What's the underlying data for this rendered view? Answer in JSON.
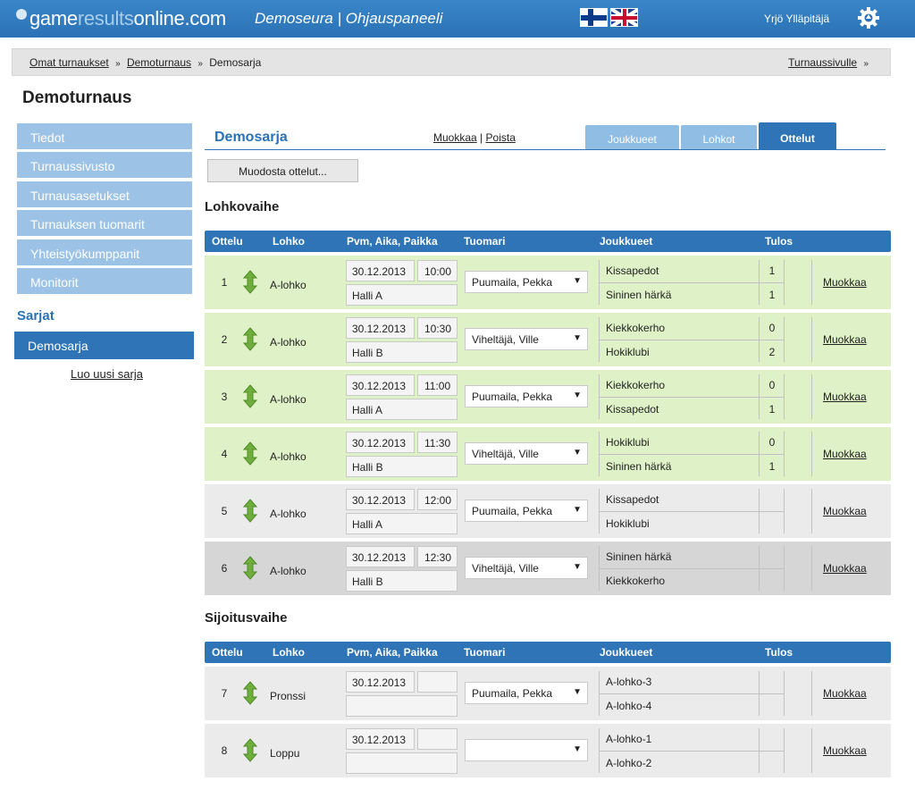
{
  "header": {
    "logo_game": "game",
    "logo_results": "results",
    "logo_online": "online.com",
    "app_title": "Demoseura | Ohjauspaneeli",
    "user_name": "Yrjö Ylläpitäjä",
    "flags": [
      "finnish-flag",
      "uk-flag"
    ],
    "accent_color": "#2e74b6"
  },
  "breadcrumb": {
    "items": [
      "Omat turnaukset",
      "Demoturnaus",
      "Demosarja"
    ],
    "sep": "»",
    "right_link": "Turnaussivulle",
    "right_sep": "»"
  },
  "page_title": "Demoturnaus",
  "sidebar": {
    "items": [
      "Tiedot",
      "Turnaussivusto",
      "Turnausasetukset",
      "Turnauksen tuomarit",
      "Yhteistyökumppanit",
      "Monitorit"
    ],
    "series_heading": "Sarjat",
    "active_series": "Demosarja",
    "new_series_link": "Luo uusi sarja"
  },
  "main": {
    "series_title": "Demosarja",
    "edit_link": "Muokkaa",
    "link_sep": "|",
    "delete_link": "Poista",
    "tabs": [
      "Joukkueet",
      "Lohkot",
      "Ottelut"
    ],
    "active_tab": "Ottelut",
    "generate_button": "Muodosta ottelut...",
    "columns": {
      "match": "Ottelu",
      "group": "Lohko",
      "datetime_place": "Pvm, Aika, Paikka",
      "referee": "Tuomari",
      "teams": "Joukkueet",
      "result": "Tulos"
    },
    "group_phase": {
      "title": "Lohkovaihe",
      "matches": [
        {
          "num": "1",
          "group": "A-lohko",
          "date": "30.12.2013",
          "time": "10:00",
          "place": "Halli A",
          "referee": "Puumaila, Pekka",
          "team1": "Kissapedot",
          "team2": "Sininen härkä",
          "score1": "1",
          "score2": "1",
          "edit": "Muokkaa"
        },
        {
          "num": "2",
          "group": "A-lohko",
          "date": "30.12.2013",
          "time": "10:30",
          "place": "Halli B",
          "referee": "Viheltäjä, Ville",
          "team1": "Kiekkokerho",
          "team2": "Hokiklubi",
          "score1": "0",
          "score2": "2",
          "edit": "Muokkaa"
        },
        {
          "num": "3",
          "group": "A-lohko",
          "date": "30.12.2013",
          "time": "11:00",
          "place": "Halli A",
          "referee": "Puumaila, Pekka",
          "team1": "Kiekkokerho",
          "team2": "Kissapedot",
          "score1": "0",
          "score2": "1",
          "edit": "Muokkaa"
        },
        {
          "num": "4",
          "group": "A-lohko",
          "date": "30.12.2013",
          "time": "11:30",
          "place": "Halli B",
          "referee": "Viheltäjä, Ville",
          "team1": "Hokiklubi",
          "team2": "Sininen härkä",
          "score1": "0",
          "score2": "1",
          "edit": "Muokkaa"
        },
        {
          "num": "5",
          "group": "A-lohko",
          "date": "30.12.2013",
          "time": "12:00",
          "place": "Halli A",
          "referee": "Puumaila, Pekka",
          "team1": "Kissapedot",
          "team2": "Hokiklubi",
          "score1": "",
          "score2": "",
          "edit": "Muokkaa"
        },
        {
          "num": "6",
          "group": "A-lohko",
          "date": "30.12.2013",
          "time": "12:30",
          "place": "Halli B",
          "referee": "Viheltäjä, Ville",
          "team1": "Sininen härkä",
          "team2": "Kiekkokerho",
          "score1": "",
          "score2": "",
          "edit": "Muokkaa"
        }
      ]
    },
    "placement_phase": {
      "title": "Sijoitusvaihe",
      "matches": [
        {
          "num": "7",
          "group": "Pronssi",
          "date": "30.12.2013",
          "time": "",
          "place": "",
          "referee": "Puumaila, Pekka",
          "team1": "A-lohko-3",
          "team2": "A-lohko-4",
          "score1": "",
          "score2": "",
          "edit": "Muokkaa"
        },
        {
          "num": "8",
          "group": "Loppu",
          "date": "30.12.2013",
          "time": "",
          "place": "",
          "referee": "",
          "team1": "A-lohko-1",
          "team2": "A-lohko-2",
          "score1": "",
          "score2": "",
          "edit": "Muokkaa"
        }
      ]
    }
  }
}
